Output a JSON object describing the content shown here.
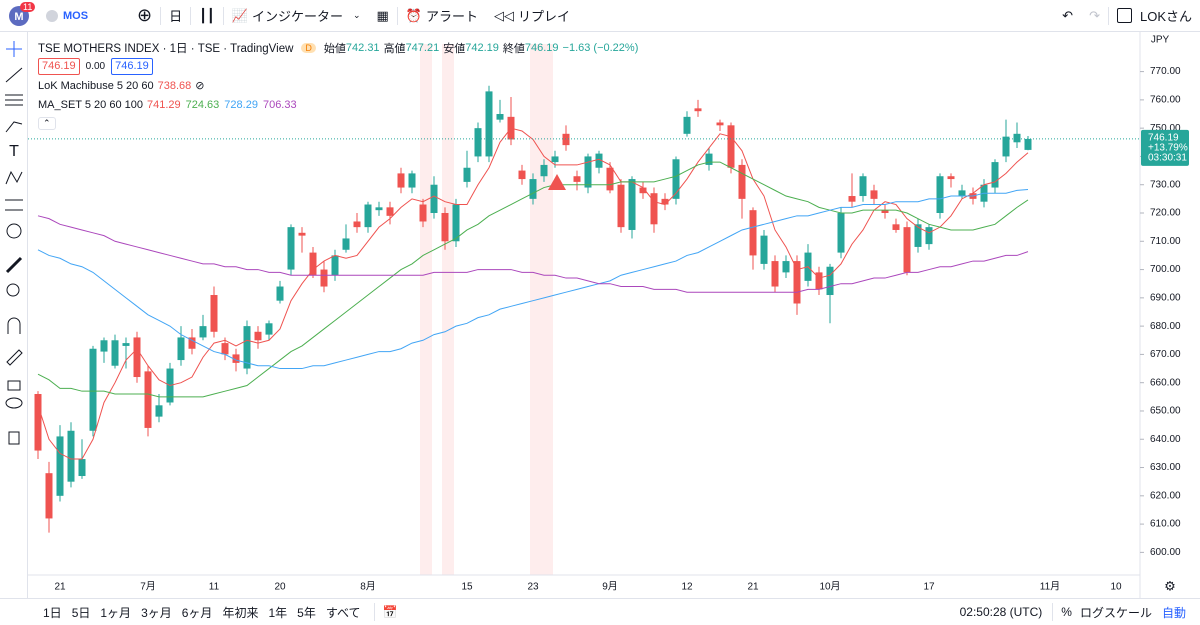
{
  "toolbar": {
    "badge": "11",
    "symbol": "MOS",
    "interval": "日",
    "indicators": "インジケーター",
    "alerts": "アラート",
    "replay": "リプレイ",
    "user": "LOKさん"
  },
  "legend": {
    "title": "TSE MOTHERS INDEX · 1日 · TSE · TradingView",
    "flag": "D",
    "ohlc_labels": [
      "始値",
      "高値",
      "安値",
      "終値"
    ],
    "change": "−1.63 (−0.22%)",
    "spread": "0.00",
    "lok": "LoK Machibuse 5 20 60",
    "lok_value": "738.68"
  },
  "price_tag": {
    "change_pct": "+13.79%",
    "countdown": "03:30:31"
  },
  "chart_data": {
    "type": "candlestick",
    "currency": "JPY",
    "up_color": "#26a69a",
    "down_color": "#ef5350",
    "categories": [
      null,
      null,
      "21",
      null,
      null,
      null,
      null,
      null,
      null,
      null,
      "7月",
      null,
      null,
      null,
      null,
      null,
      "11",
      null,
      null,
      null,
      null,
      null,
      "20",
      null,
      null,
      null,
      null,
      null,
      null,
      null,
      "8月",
      null,
      null,
      null,
      null,
      null,
      null,
      null,
      null,
      "15",
      null,
      null,
      null,
      null,
      null,
      "23",
      null,
      null,
      null,
      null,
      null,
      null,
      "9月",
      null,
      null,
      null,
      null,
      null,
      null,
      "12",
      null,
      null,
      null,
      null,
      null,
      "21",
      null,
      null,
      null,
      null,
      null,
      null,
      "10月",
      null,
      null,
      null,
      null,
      null,
      null,
      null,
      null,
      "17",
      null,
      null,
      null,
      null,
      null,
      null,
      null,
      null,
      null,
      null,
      "11月",
      null,
      null,
      null,
      null,
      null,
      "10",
      null
    ],
    "open": [
      656,
      628,
      620,
      625,
      627,
      643,
      671,
      666,
      673,
      676,
      664,
      648,
      653,
      668,
      676,
      676,
      691,
      674,
      670,
      665,
      678,
      677,
      689,
      700,
      713,
      706,
      700,
      698,
      707,
      717,
      715,
      721,
      722,
      734,
      729,
      723,
      720,
      720,
      710,
      731,
      740,
      740,
      753,
      754,
      735,
      725,
      733,
      738,
      748,
      733,
      729,
      736,
      736,
      730,
      714,
      729,
      727,
      725,
      725,
      748,
      757,
      737,
      752,
      751,
      737,
      721,
      702,
      703,
      699,
      703,
      696,
      699,
      691,
      706,
      726,
      726,
      728,
      721,
      716,
      715,
      708,
      709,
      720,
      733,
      726,
      727,
      724,
      729,
      740,
      745,
      742.31,
      null,
      null,
      null,
      null,
      null,
      null,
      null,
      null,
      null
    ],
    "high": [
      657,
      632,
      645,
      646,
      640,
      673,
      676,
      677,
      676,
      678,
      666,
      656,
      667,
      680,
      679,
      684,
      694,
      676,
      672,
      682,
      680,
      682,
      696,
      716,
      715,
      708,
      703,
      707,
      716,
      720,
      724,
      724,
      724,
      736,
      735,
      725,
      733,
      722,
      725,
      742,
      752,
      765,
      760,
      761,
      737,
      734,
      739,
      742,
      751,
      735,
      741,
      742,
      738,
      732,
      733,
      731,
      729,
      727,
      740,
      756,
      760,
      743,
      753,
      752,
      739,
      722,
      714,
      705,
      705,
      705,
      709,
      701,
      702,
      722,
      734,
      734,
      730,
      723,
      718,
      717,
      718,
      716,
      734,
      734,
      730,
      729,
      732,
      739,
      753,
      752,
      747.21,
      null,
      null,
      null,
      null,
      null,
      null,
      null,
      null,
      null
    ],
    "low": [
      633,
      607,
      618,
      623,
      626,
      641,
      667,
      665,
      665,
      660,
      641,
      646,
      652,
      666,
      670,
      675,
      676,
      668,
      664,
      663,
      672,
      675,
      688,
      698,
      706,
      697,
      692,
      696,
      706,
      713,
      713,
      719,
      716,
      727,
      727,
      715,
      718,
      707,
      708,
      729,
      738,
      738,
      752,
      744,
      730,
      723,
      731,
      736,
      742,
      728,
      727,
      734,
      727,
      713,
      711,
      725,
      713,
      721,
      723,
      747,
      754,
      735,
      749,
      734,
      718,
      700,
      700,
      692,
      697,
      684,
      694,
      691,
      681,
      704,
      722,
      724,
      723,
      718,
      713,
      698,
      706,
      707,
      718,
      729,
      725,
      723,
      722,
      727,
      738,
      743,
      742.19,
      null,
      null,
      null,
      null,
      null,
      null,
      null,
      null,
      null
    ],
    "close": [
      636,
      612,
      641,
      643,
      633,
      672,
      675,
      675,
      674,
      662,
      644,
      652,
      665,
      676,
      672,
      680,
      678,
      670,
      667,
      680,
      675,
      681,
      694,
      715,
      712,
      698,
      694,
      705,
      711,
      715,
      723,
      722,
      719,
      729,
      734,
      717,
      730,
      710,
      723,
      736,
      750,
      763,
      755,
      746,
      732,
      732,
      737,
      740,
      744,
      731,
      740,
      741,
      728,
      715,
      732,
      727,
      716,
      723,
      739,
      754,
      756,
      741,
      751,
      736,
      725,
      705,
      712,
      694,
      703,
      688,
      706,
      693,
      701,
      720,
      724,
      733,
      725,
      720,
      714,
      699,
      716,
      715,
      733,
      732,
      728,
      725,
      730,
      738,
      747,
      748,
      746.19,
      null,
      null,
      null,
      null,
      null,
      null,
      null,
      null,
      null
    ],
    "ma_title": "MA_SET 5 20 60 100",
    "lines": [
      {
        "color": "#ef5350",
        "values": [
          652,
          640,
          635,
          633,
          633,
          640,
          653,
          660,
          668,
          672,
          666,
          661,
          659,
          660,
          662,
          669,
          674,
          675,
          673,
          675,
          674,
          675,
          679,
          689,
          695,
          700,
          703,
          705,
          704,
          705,
          710,
          715,
          718,
          722,
          725,
          724,
          726,
          724,
          723,
          723,
          730,
          736,
          745,
          750,
          749,
          746,
          740,
          737,
          737,
          737,
          738,
          739,
          737,
          731,
          731,
          729,
          724,
          723,
          727,
          732,
          738,
          743,
          748,
          747,
          742,
          732,
          726,
          714,
          708,
          700,
          701,
          697,
          698,
          702,
          709,
          714,
          721,
          724,
          723,
          718,
          715,
          713,
          715,
          719,
          725,
          727,
          730,
          731,
          734,
          738,
          741.29,
          null,
          null,
          null,
          null,
          null,
          null,
          null,
          null,
          null
        ]
      },
      {
        "color": "#4caf50",
        "values": [
          663,
          661,
          658,
          658,
          657,
          657,
          657,
          656,
          656,
          656,
          656,
          655,
          655,
          655,
          655,
          655,
          656,
          657,
          658,
          659,
          662,
          665,
          668,
          671,
          673,
          676,
          679,
          682,
          685,
          688,
          691,
          694,
          697,
          700,
          702,
          705,
          707,
          709,
          711,
          714,
          716,
          719,
          721,
          723,
          725,
          727,
          729,
          730,
          730,
          730,
          730,
          730,
          730,
          731,
          731,
          731,
          731,
          732,
          733,
          735,
          737,
          738,
          738,
          736,
          734,
          732,
          730,
          728,
          726,
          725,
          724,
          722,
          721,
          720,
          720,
          721,
          721,
          721,
          721,
          720,
          718,
          716,
          715,
          714,
          714,
          714,
          715,
          716,
          719,
          722,
          724.63,
          null,
          null,
          null,
          null,
          null,
          null,
          null,
          null,
          null
        ]
      },
      {
        "color": "#42a5f5",
        "values": [
          707,
          705,
          704,
          702,
          701,
          699,
          696,
          693,
          690,
          687,
          684,
          682,
          680,
          677,
          675,
          673,
          671,
          670,
          668,
          667,
          666,
          666,
          665,
          665,
          665,
          666,
          666,
          667,
          668,
          669,
          670,
          671,
          671,
          672,
          674,
          675,
          677,
          678,
          680,
          681,
          683,
          684,
          686,
          687,
          688,
          689,
          690,
          691,
          692,
          693,
          694,
          695,
          696,
          698,
          699,
          700,
          701,
          702,
          703,
          705,
          706,
          708,
          710,
          712,
          714,
          715,
          716,
          717,
          718,
          719,
          719,
          720,
          721,
          722,
          722,
          723,
          723,
          723,
          724,
          724,
          724,
          725,
          725,
          726,
          726,
          726,
          727,
          727,
          727,
          728,
          728.29,
          null,
          null,
          null,
          null,
          null,
          null,
          null,
          null,
          null
        ]
      },
      {
        "color": "#ab47bc",
        "values": [
          719,
          718,
          716,
          715,
          714,
          713,
          712,
          710,
          709,
          708,
          707,
          706,
          705,
          704,
          703,
          702,
          702,
          701,
          701,
          700,
          700,
          699,
          699,
          698,
          698,
          698,
          698,
          698,
          698,
          698,
          698,
          698,
          698,
          698,
          698,
          698,
          699,
          699,
          699,
          699,
          700,
          700,
          700,
          700,
          699,
          699,
          698,
          698,
          697,
          697,
          696,
          695,
          695,
          694,
          694,
          694,
          693,
          693,
          693,
          692,
          692,
          692,
          692,
          692,
          692,
          692,
          692,
          692,
          692,
          692,
          693,
          693,
          694,
          695,
          695,
          696,
          697,
          697,
          698,
          699,
          699,
          700,
          701,
          701,
          702,
          703,
          703,
          704,
          705,
          705,
          706.33,
          null,
          null,
          null,
          null,
          null,
          null,
          null,
          null,
          null
        ]
      }
    ],
    "ylim": [
      592,
      784
    ],
    "yticks": [
      {
        "value": 600,
        "label": "600.00"
      },
      {
        "value": 610,
        "label": "610.00"
      },
      {
        "value": 620,
        "label": "620.00"
      },
      {
        "value": 630,
        "label": "630.00"
      },
      {
        "value": 640,
        "label": "640.00"
      },
      {
        "value": 650,
        "label": "650.00"
      },
      {
        "value": 660,
        "label": "660.00"
      },
      {
        "value": 670,
        "label": "670.00"
      },
      {
        "value": 680,
        "label": "680.00"
      },
      {
        "value": 690,
        "label": "690.00"
      },
      {
        "value": 700,
        "label": "700.00"
      },
      {
        "value": 710,
        "label": "710.00"
      },
      {
        "value": 720,
        "label": "720.00"
      },
      {
        "value": 730,
        "label": "730.00"
      },
      {
        "value": 740,
        "label": "740.00"
      },
      {
        "value": 750,
        "label": "750.00"
      },
      {
        "value": 760,
        "label": "760.00"
      },
      {
        "value": 770,
        "label": "770.00"
      }
    ],
    "grid": false
  },
  "bottom": {
    "ranges": [
      "1日",
      "5日",
      "1ヶ月",
      "3ヶ月",
      "6ヶ月",
      "年初来",
      "1年",
      "5年",
      "すべて"
    ],
    "time": "02:50:28 (UTC)",
    "percent": "%",
    "log": "ログスケール",
    "auto": "自動"
  }
}
